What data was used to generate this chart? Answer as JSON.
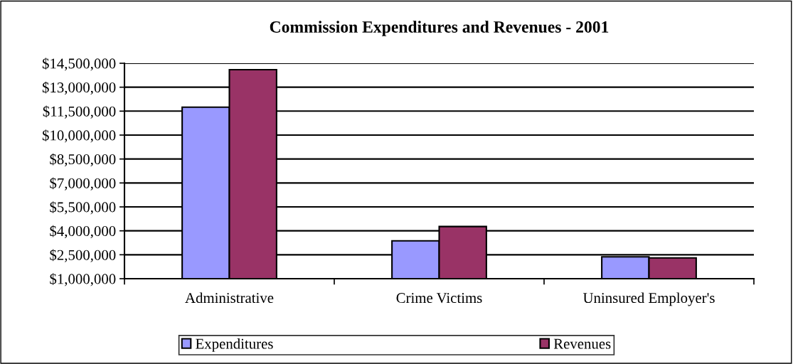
{
  "chart_data": {
    "type": "bar",
    "title": "Commission Expenditures and Revenues - 2001",
    "categories": [
      "Administrative",
      "Crime Victims",
      "Uninsured Employer's"
    ],
    "series": [
      {
        "name": "Expenditures",
        "color": "#9999ff",
        "values": [
          11750000,
          3375000,
          2370000
        ]
      },
      {
        "name": "Revenues",
        "color": "#993366",
        "values": [
          14100000,
          4270000,
          2300000
        ]
      }
    ],
    "ylim": [
      1000000,
      14500000
    ],
    "yticks": [
      {
        "value": 1000000,
        "label": "$1,000,000"
      },
      {
        "value": 2500000,
        "label": "$2,500,000"
      },
      {
        "value": 4000000,
        "label": "$4,000,000"
      },
      {
        "value": 5500000,
        "label": "$5,500,000"
      },
      {
        "value": 7000000,
        "label": "$7,000,000"
      },
      {
        "value": 8500000,
        "label": "$8,500,000"
      },
      {
        "value": 10000000,
        "label": "$10,000,000"
      },
      {
        "value": 11500000,
        "label": "$11,500,000"
      },
      {
        "value": 13000000,
        "label": "$13,000,000"
      },
      {
        "value": 14500000,
        "label": "$14,500,000"
      }
    ],
    "grid": "y",
    "legend": "bottom"
  }
}
